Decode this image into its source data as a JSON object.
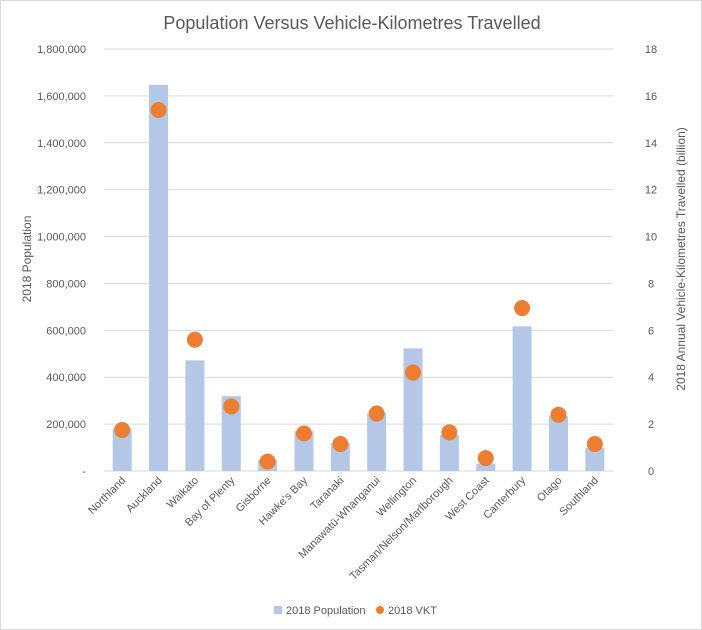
{
  "chart_data": {
    "type": "bar",
    "title": "Population Versus Vehicle-Kilometres Travelled",
    "categories": [
      "Northland",
      "Auckland",
      "Waikato",
      "Bay of Plenty",
      "Gisborne",
      "Hawke's Bay",
      "Taranaki",
      "Manawatū-Whanganui",
      "Wellington",
      "Tasman/Nelson/Marlborough",
      "West Coast",
      "Canterbury",
      "Otago",
      "Southland"
    ],
    "series": [
      {
        "name": "2018 Population",
        "type": "bar",
        "axis": "left",
        "color": "#b4c7e7",
        "values": [
          182000,
          1647000,
          472000,
          319000,
          47000,
          170000,
          119000,
          247000,
          523000,
          153000,
          31000,
          617000,
          234000,
          98000
        ]
      },
      {
        "name": "2018 VKT",
        "type": "scatter",
        "axis": "right",
        "color": "#ed7d31",
        "values": [
          1.75,
          15.4,
          5.6,
          2.75,
          0.4,
          1.6,
          1.15,
          2.45,
          4.2,
          1.65,
          0.55,
          6.95,
          2.4,
          1.15
        ]
      }
    ],
    "ylabel": "2018 Population",
    "y2label": "2018 Annual Vehicle-Kilometres Travelled (billion)",
    "ylim": [
      0,
      1800000
    ],
    "y2lim": [
      0,
      18
    ],
    "yticks": [
      "-",
      "200,000",
      "400,000",
      "600,000",
      "800,000",
      "1,000,000",
      "1,200,000",
      "1,400,000",
      "1,600,000",
      "1,800,000"
    ],
    "y2ticks": [
      "0",
      "2",
      "4",
      "6",
      "8",
      "10",
      "12",
      "14",
      "16",
      "18"
    ],
    "grid": true,
    "legend": "bottom"
  }
}
